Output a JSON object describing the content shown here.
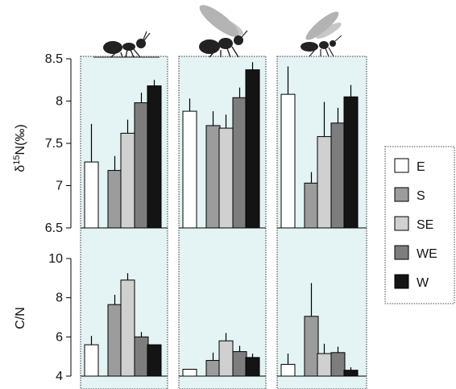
{
  "chart_data": [
    {
      "type": "bar",
      "panel": "top",
      "ylabel_prefix": "δ",
      "ylabel_sup": "15",
      "ylabel_suffix": "N(‰)",
      "ylim": [
        6.5,
        8.5
      ],
      "yticks": [
        "8.5",
        "8",
        "7.5",
        "7",
        "6.5"
      ],
      "ytick_values": [
        8.5,
        8,
        7.5,
        7,
        6.5
      ],
      "groups": [
        "ant-worker",
        "winged-ant",
        "wasp"
      ],
      "series": [
        {
          "name": "E",
          "values": [
            7.28,
            7.88,
            8.08
          ],
          "errors": [
            0.45,
            0.15,
            0.33
          ]
        },
        {
          "name": "S",
          "values": [
            7.18,
            7.71,
            7.03
          ],
          "errors": [
            0.17,
            0.17,
            0.13
          ]
        },
        {
          "name": "SE",
          "values": [
            7.62,
            7.68,
            7.58
          ],
          "errors": [
            0.16,
            0.16,
            0.41
          ]
        },
        {
          "name": "WE",
          "values": [
            7.98,
            8.04,
            7.74
          ],
          "errors": [
            0.12,
            0.12,
            0.18
          ]
        },
        {
          "name": "W",
          "values": [
            8.18,
            8.37,
            8.05
          ],
          "errors": [
            0.07,
            0.09,
            0.14
          ]
        }
      ]
    },
    {
      "type": "bar",
      "panel": "bottom",
      "ylabel": "C/N",
      "ylim": [
        4,
        10
      ],
      "yticks": [
        "10",
        "8",
        "6",
        "4"
      ],
      "ytick_values": [
        10,
        8,
        6,
        4
      ],
      "groups": [
        "ant-worker",
        "winged-ant",
        "wasp"
      ],
      "series": [
        {
          "name": "E",
          "values": [
            5.6,
            4.35,
            4.6
          ],
          "errors": [
            0.45,
            0.0,
            0.55
          ]
        },
        {
          "name": "S",
          "values": [
            7.65,
            4.8,
            7.05
          ],
          "errors": [
            0.5,
            0.4,
            1.7
          ]
        },
        {
          "name": "SE",
          "values": [
            8.9,
            5.8,
            5.15
          ],
          "errors": [
            0.35,
            0.4,
            0.5
          ]
        },
        {
          "name": "WE",
          "values": [
            6.0,
            5.25,
            5.2
          ],
          "errors": [
            0.25,
            0.3,
            0.3
          ]
        },
        {
          "name": "W",
          "values": [
            5.6,
            4.95,
            4.3
          ],
          "errors": [
            0.0,
            0.2,
            0.15
          ]
        }
      ]
    }
  ],
  "legend": [
    {
      "label": "E",
      "color": "#ffffff"
    },
    {
      "label": "S",
      "color": "#9c9c9c"
    },
    {
      "label": "SE",
      "color": "#d0d0d0"
    },
    {
      "label": "WE",
      "color": "#7d7d7d"
    },
    {
      "label": "W",
      "color": "#141414"
    }
  ],
  "icons": [
    "ant-worker-icon",
    "winged-ant-icon",
    "wasp-icon"
  ],
  "colors": {
    "panel_background": "#e4f3f3",
    "bar_outline": "#000000"
  }
}
